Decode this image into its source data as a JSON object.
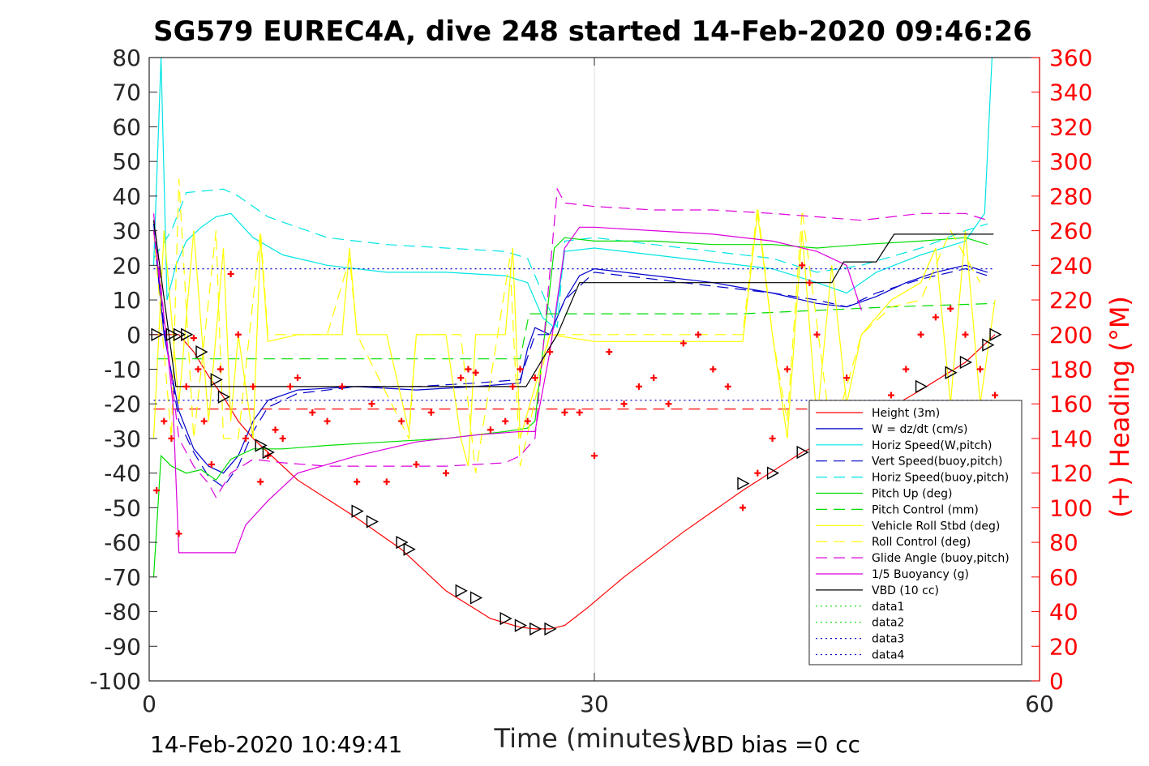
{
  "chart_data": {
    "type": "line",
    "title": "SG579 EUREC4A, dive 248 started 14-Feb-2020 09:46:26",
    "xlabel": "Time (minutes)",
    "ylabel": "",
    "y2label": "(+) Heading (°M)",
    "xlim": [
      0,
      60
    ],
    "ylim": [
      -100,
      80
    ],
    "y2lim": [
      0,
      360
    ],
    "xticks": [
      "0",
      "30",
      "60"
    ],
    "yticks": [
      "80",
      "70",
      "60",
      "50",
      "40",
      "30",
      "20",
      "10",
      "0",
      "-10",
      "-20",
      "-30",
      "-40",
      "-50",
      "-60",
      "-70",
      "-80",
      "-90",
      "-100"
    ],
    "y2ticks": [
      "360",
      "340",
      "320",
      "300",
      "280",
      "260",
      "240",
      "220",
      "200",
      "180",
      "160",
      "140",
      "120",
      "100",
      "80",
      "60",
      "40",
      "20",
      "0"
    ],
    "grid": "x-only",
    "legend_position": "lower-right",
    "footer_left": "14-Feb-2020 10:49:41",
    "footer_right": "VBD bias =0 cc",
    "colors": {
      "height": "#ff0000",
      "w": "#0000cc",
      "horiz_speed": "#00e5e5",
      "vert_speed_buoy": "#0000cc",
      "horiz_speed_buoy": "#00e5e5",
      "pitch_up": "#00dd00",
      "pitch_control": "#00dd00",
      "roll": "#ffff00",
      "roll_control": "#ffff00",
      "glide_angle": "#dd00dd",
      "buoyancy": "#dd00dd",
      "vbd": "#000000",
      "heading": "#ff0000"
    },
    "series": [
      {
        "name": "Height (3m)",
        "style": "solid",
        "color": "#ff0000",
        "x": [
          0,
          0.5,
          1,
          1.5,
          2,
          3,
          4,
          5,
          6,
          7,
          8,
          10,
          14,
          17,
          20,
          23,
          25,
          26,
          27,
          28,
          29.5,
          32,
          36,
          40,
          44,
          48,
          52,
          55,
          57
        ],
        "y": [
          0,
          0,
          0,
          0,
          0,
          -5,
          -12,
          -18,
          -25,
          -30,
          -34,
          -42,
          -53,
          -62,
          -74,
          -82,
          -84.5,
          -85,
          -85,
          -84,
          -79,
          -70,
          -57,
          -45,
          -34,
          -26,
          -16,
          -8,
          0
        ]
      },
      {
        "name": "W = dz/dt (cm/s)",
        "style": "solid",
        "color": "#0000cc",
        "x": [
          0.3,
          1,
          2,
          3,
          4,
          5,
          6,
          7,
          8,
          10,
          14,
          18,
          22,
          25,
          25.5,
          26,
          27,
          28,
          29,
          30,
          34,
          38,
          42,
          45,
          47,
          49,
          51,
          53,
          55,
          56.5
        ],
        "y": [
          30,
          0,
          -22,
          -33,
          -38,
          -40,
          -35,
          -25,
          -19,
          -16,
          -15,
          -16,
          -15,
          -14,
          -4,
          2,
          0,
          10,
          17,
          19,
          17,
          15,
          12,
          9,
          8,
          11,
          15,
          18,
          20,
          18
        ]
      },
      {
        "name": "Horiz Speed(W,pitch)",
        "style": "solid",
        "color": "#00e5e5",
        "x": [
          0.3,
          0.8,
          1.2,
          1.8,
          2.5,
          3.5,
          4.5,
          5.5,
          7,
          9,
          12,
          16,
          20,
          24,
          25.5,
          26.5,
          27.3,
          28,
          30,
          34,
          38,
          42,
          45,
          47,
          49,
          52,
          55,
          56.3,
          56.8
        ],
        "y": [
          20,
          80,
          10,
          20,
          27,
          31,
          34,
          35,
          28,
          23,
          20,
          18,
          18,
          17,
          15,
          5,
          2,
          24,
          25,
          23,
          21,
          19,
          15,
          12,
          18,
          23,
          27,
          35,
          80
        ]
      },
      {
        "name": "Vert Speed(buoy,pitch)",
        "style": "dashed",
        "color": "#0000cc",
        "x": [
          0.3,
          1,
          2,
          3,
          4,
          5,
          6,
          7,
          8,
          10,
          14,
          18,
          22,
          25,
          26,
          27,
          28,
          30,
          34,
          38,
          42,
          45,
          47,
          49,
          52,
          55,
          56.5
        ],
        "y": [
          32,
          2,
          -25,
          -34,
          -41,
          -44,
          -38,
          -28,
          -21,
          -17,
          -15,
          -15,
          -14,
          -13,
          0,
          0,
          10,
          18,
          16,
          14,
          12,
          10,
          8,
          12,
          16,
          19,
          17
        ]
      },
      {
        "name": "Horiz Speed(buoy,pitch)",
        "style": "dashed",
        "color": "#00e5e5",
        "x": [
          0.3,
          1.5,
          2.5,
          5,
          6,
          8,
          12,
          16,
          20,
          24,
          25.5,
          27.5,
          28,
          30,
          34,
          38,
          42,
          45,
          48,
          52,
          55,
          56.5
        ],
        "y": [
          22,
          30,
          41,
          42,
          40,
          34,
          28,
          26,
          25,
          24,
          22,
          2,
          27,
          28,
          26,
          24,
          22,
          18,
          20,
          25,
          30,
          32
        ]
      },
      {
        "name": "Pitch Up (deg)",
        "style": "solid",
        "color": "#00dd00",
        "x": [
          0.3,
          0.8,
          1.5,
          2.5,
          3.5,
          4.5,
          5.5,
          7,
          9,
          12,
          16,
          20,
          24,
          25.5,
          26,
          27.3,
          28,
          30,
          34,
          38,
          42,
          45,
          48,
          52,
          55,
          56.5
        ],
        "y": [
          -70,
          -35,
          -38,
          -40,
          -39,
          -42,
          -36,
          -33,
          -33,
          -32,
          -31,
          -30,
          -28,
          -27,
          -25,
          25,
          28,
          27,
          27,
          26,
          26,
          25,
          26,
          27,
          28,
          26
        ]
      },
      {
        "name": "Pitch Control (mm)",
        "style": "dashed",
        "color": "#00dd00",
        "x": [
          0.5,
          2,
          6,
          10,
          14,
          20,
          25,
          25.6,
          28,
          28.1,
          40,
          45,
          50,
          57
        ],
        "y": [
          -7,
          -7,
          -7,
          -7,
          -7,
          -7,
          -7,
          6,
          6,
          6,
          6,
          7,
          8,
          9
        ]
      },
      {
        "name": "Vehicle Roll Stbd (deg)",
        "style": "solid",
        "color": "#ffff00",
        "x": [
          0.3,
          1,
          2,
          3,
          4,
          4.5,
          5,
          5.5,
          6,
          7,
          7.5,
          8,
          10,
          13,
          13.5,
          14,
          15,
          16,
          17.5,
          18,
          19,
          20,
          21,
          21.5,
          22,
          24,
          24.5,
          25,
          27,
          30,
          34,
          38,
          40,
          41,
          42,
          43,
          44,
          45,
          46,
          47,
          48,
          50,
          52,
          53,
          54,
          55,
          56,
          57
        ],
        "y": [
          -30,
          30,
          -20,
          30,
          -25,
          0,
          25,
          -25,
          0,
          -30,
          28,
          -2,
          0,
          0,
          25,
          0,
          0,
          0,
          -28,
          0,
          0,
          0,
          -30,
          -38,
          0,
          0,
          25,
          -30,
          0,
          -2,
          -2,
          -2,
          -2,
          35,
          0,
          -30,
          30,
          -25,
          20,
          -20,
          0,
          10,
          15,
          25,
          -20,
          30,
          -20,
          10
        ]
      },
      {
        "name": "Roll Control (deg)",
        "style": "dashed",
        "color": "#ffff00",
        "x": [
          0.3,
          1.5,
          2,
          3,
          4.5,
          5,
          6,
          7.5,
          8,
          12,
          13.5,
          14,
          17.5,
          18,
          21,
          22,
          24.3,
          25,
          27,
          30,
          40,
          41,
          42,
          43,
          44,
          46,
          48,
          50,
          52,
          54,
          56
        ],
        "y": [
          30,
          -30,
          45,
          -30,
          30,
          -30,
          -30,
          30,
          0,
          0,
          22,
          0,
          -30,
          0,
          0,
          -40,
          22,
          -38,
          0,
          0,
          0,
          37,
          0,
          -25,
          36,
          -30,
          0,
          8,
          10,
          30,
          15
        ]
      },
      {
        "name": "Glide Angle (buoy,pitch)",
        "style": "dashed",
        "color": "#dd00dd",
        "x": [
          0.3,
          1,
          2,
          3,
          4,
          4.5,
          5.5,
          7,
          9,
          12,
          16,
          20,
          24,
          25,
          26,
          27.5,
          28,
          30,
          34,
          38,
          42,
          45,
          48,
          52,
          55,
          56.5
        ],
        "y": [
          35,
          5,
          -30,
          -38,
          -43,
          -47,
          -40,
          -36,
          -37,
          -38,
          -38,
          -38,
          -37,
          -35,
          -30,
          42,
          38,
          37,
          36,
          36,
          35,
          34,
          33,
          35,
          35,
          33
        ]
      },
      {
        "name": "1/5 Buoyancy (g)",
        "style": "solid",
        "color": "#dd00dd",
        "x": [
          0.3,
          1,
          1.6,
          2,
          3,
          5,
          5.8,
          6.5,
          8,
          10,
          14,
          18,
          22,
          25,
          26,
          27,
          28,
          29,
          30,
          34,
          38,
          42,
          45,
          47,
          48
        ],
        "y": [
          30,
          5,
          -20,
          -63,
          -63,
          -63,
          -63,
          -55,
          -48,
          -40,
          -35,
          -31,
          -29,
          -28,
          -28,
          -5,
          25,
          31,
          31,
          30,
          29,
          27,
          24,
          20,
          7
        ]
      },
      {
        "name": "VBD (10 cc)",
        "style": "solid",
        "color": "#000000",
        "x": [
          0.3,
          1.8,
          3.5,
          10,
          20,
          25.4,
          27.5,
          29,
          30,
          40,
          46,
          46.8,
          49,
          50.2,
          55,
          56.9
        ],
        "y": [
          33,
          -15,
          -15,
          -15,
          -15,
          -15,
          0,
          15,
          15,
          15,
          15,
          21,
          21,
          29,
          29,
          29
        ]
      },
      {
        "name": "data1",
        "style": "dotted",
        "color": "#00dd00",
        "x": [],
        "y": []
      },
      {
        "name": "data2",
        "style": "dotted",
        "color": "#00dd00",
        "x": [],
        "y": []
      },
      {
        "name": "data3",
        "style": "dotted",
        "color": "#0000cc",
        "x": [
          0.3,
          57
        ],
        "y": [
          19,
          19
        ]
      },
      {
        "name": "data4",
        "style": "dotted",
        "color": "#0000cc",
        "x": [
          0.3,
          57
        ],
        "y": [
          -19,
          -19
        ]
      }
    ],
    "reference_lines": [
      {
        "style": "dashed",
        "color": "#ff0000",
        "y": -21.5,
        "x": [
          0.3,
          57
        ]
      }
    ],
    "heading_points": {
      "x": [
        0.5,
        1,
        1.5,
        2,
        2.5,
        3,
        3.3,
        3.7,
        4.2,
        4.8,
        5.5,
        6,
        6.5,
        7,
        7.5,
        8,
        8.5,
        9,
        9.5,
        10,
        11,
        12,
        13,
        14,
        15,
        16,
        17,
        18,
        19,
        20,
        21,
        21.5,
        22,
        23,
        24,
        24.5,
        25,
        25.5,
        26,
        27,
        28,
        29,
        30,
        31,
        32,
        33,
        34,
        35,
        36,
        37,
        38,
        39,
        40,
        41,
        42,
        43,
        44,
        44.5,
        45,
        46,
        47,
        48,
        49,
        50,
        51,
        52,
        53,
        54,
        55,
        56,
        57
      ],
      "y": [
        110,
        150,
        140,
        85,
        170,
        198,
        180,
        150,
        125,
        180,
        235,
        200,
        140,
        170,
        115,
        130,
        145,
        140,
        170,
        175,
        155,
        150,
        170,
        115,
        160,
        115,
        150,
        125,
        155,
        120,
        175,
        180,
        178,
        145,
        150,
        170,
        180,
        150,
        175,
        190,
        155,
        155,
        130,
        190,
        160,
        170,
        175,
        160,
        195,
        200,
        180,
        170,
        100,
        120,
        140,
        180,
        240,
        230,
        200,
        150,
        175,
        150,
        155,
        165,
        180,
        200,
        210,
        215,
        200,
        180,
        165
      ]
    },
    "markers": {
      "x": [
        0.5,
        1.5,
        2,
        2.5,
        3.5,
        4.5,
        5,
        7.5,
        8,
        14,
        15,
        17,
        17.5,
        21,
        22,
        24,
        25,
        26,
        27,
        40,
        42,
        44,
        52,
        54,
        55,
        56.5,
        57
      ],
      "y": [
        0,
        0,
        0,
        0,
        -5,
        -13,
        -18,
        -32,
        -34,
        -51,
        -54,
        -60,
        -62,
        -74,
        -76,
        -82,
        -84,
        -85,
        -85,
        -43,
        -40,
        -34,
        -15,
        -11,
        -8,
        -3,
        0
      ]
    }
  }
}
